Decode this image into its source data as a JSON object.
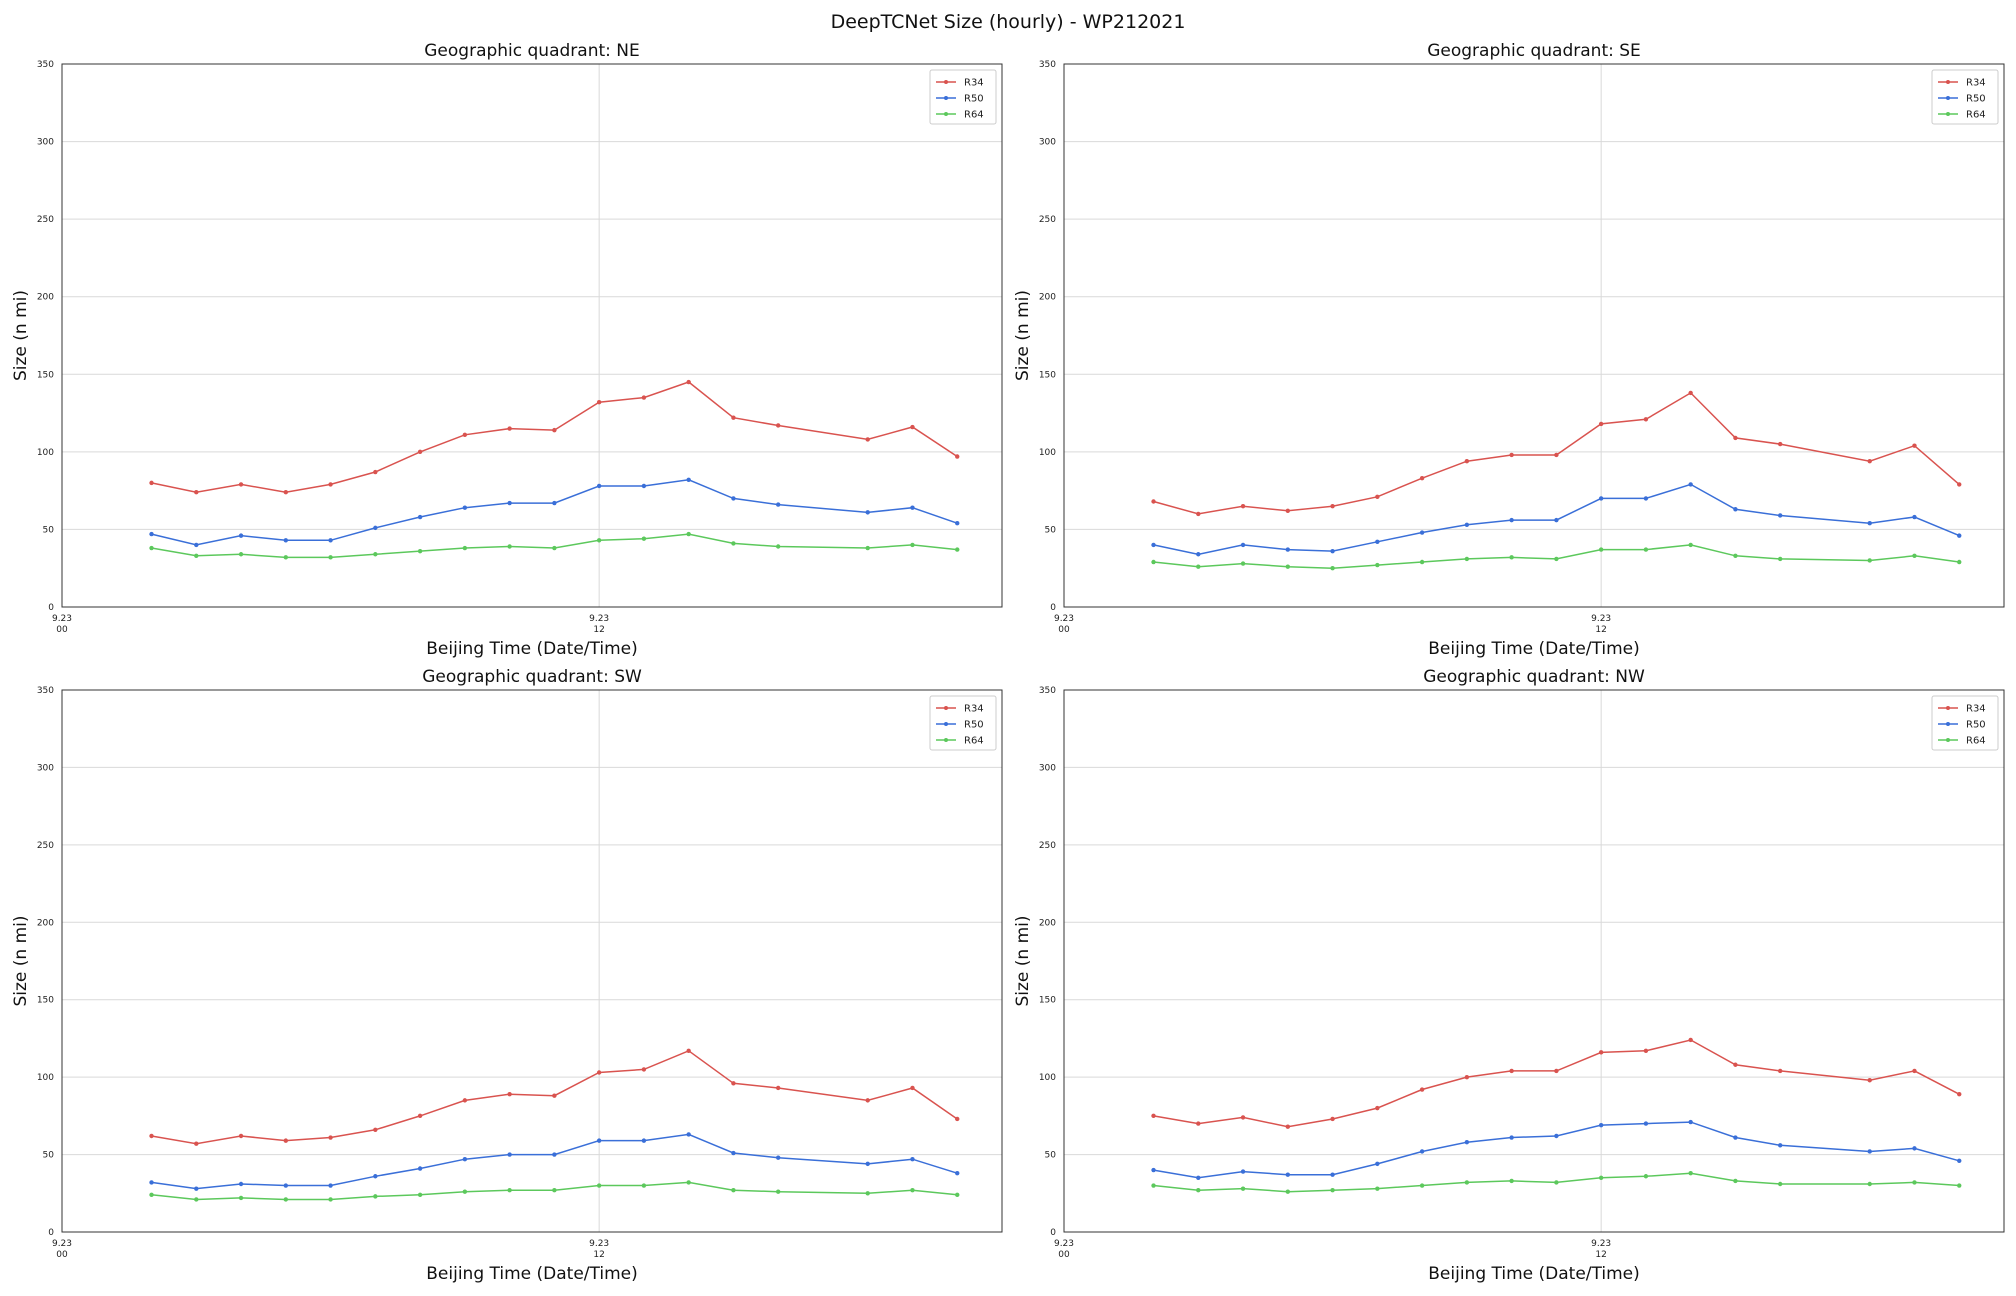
{
  "figure": {
    "suptitle": "DeepTCNet Size (hourly) - WP212021"
  },
  "colors": {
    "R34": "#d9534f",
    "R50": "#3a6fd8",
    "R64": "#5cc85c",
    "grid": "#d9d9d9",
    "axes": "#333333"
  },
  "chart_data": [
    {
      "type": "line",
      "title": "Geographic quadrant: NE",
      "xlabel": "Beijing Time (Date/Time)",
      "ylabel": "Size (n mi)",
      "xlim": [
        0,
        21
      ],
      "ylim": [
        0,
        350
      ],
      "yticks": [
        0,
        50,
        100,
        150,
        200,
        250,
        300,
        350
      ],
      "xticks": [
        {
          "x": 0,
          "line1": "9.23",
          "line2": "00"
        },
        {
          "x": 12,
          "line1": "9.23",
          "line2": "12"
        }
      ],
      "legend_position": "upper-right",
      "x": [
        2,
        3,
        4,
        5,
        6,
        7,
        8,
        9,
        10,
        11,
        12,
        13,
        14,
        15,
        16,
        18,
        19,
        20
      ],
      "series": [
        {
          "name": "R34",
          "values": [
            80,
            74,
            79,
            74,
            79,
            87,
            100,
            111,
            115,
            114,
            132,
            135,
            145,
            122,
            117,
            108,
            116,
            97
          ]
        },
        {
          "name": "R50",
          "values": [
            47,
            40,
            46,
            43,
            43,
            51,
            58,
            64,
            67,
            67,
            78,
            78,
            82,
            70,
            66,
            61,
            64,
            54
          ]
        },
        {
          "name": "R64",
          "values": [
            38,
            33,
            34,
            32,
            32,
            34,
            36,
            38,
            39,
            38,
            43,
            44,
            47,
            41,
            39,
            38,
            40,
            37
          ]
        }
      ]
    },
    {
      "type": "line",
      "title": "Geographic quadrant: SE",
      "xlabel": "Beijing Time (Date/Time)",
      "ylabel": "Size (n mi)",
      "xlim": [
        0,
        21
      ],
      "ylim": [
        0,
        350
      ],
      "yticks": [
        0,
        50,
        100,
        150,
        200,
        250,
        300,
        350
      ],
      "xticks": [
        {
          "x": 0,
          "line1": "9.23",
          "line2": "00"
        },
        {
          "x": 12,
          "line1": "9.23",
          "line2": "12"
        }
      ],
      "legend_position": "upper-right",
      "x": [
        2,
        3,
        4,
        5,
        6,
        7,
        8,
        9,
        10,
        11,
        12,
        13,
        14,
        15,
        16,
        18,
        19,
        20
      ],
      "series": [
        {
          "name": "R34",
          "values": [
            68,
            60,
            65,
            62,
            65,
            71,
            83,
            94,
            98,
            98,
            118,
            121,
            138,
            109,
            105,
            94,
            104,
            79
          ]
        },
        {
          "name": "R50",
          "values": [
            40,
            34,
            40,
            37,
            36,
            42,
            48,
            53,
            56,
            56,
            70,
            70,
            79,
            63,
            59,
            54,
            58,
            46
          ]
        },
        {
          "name": "R64",
          "values": [
            29,
            26,
            28,
            26,
            25,
            27,
            29,
            31,
            32,
            31,
            37,
            37,
            40,
            33,
            31,
            30,
            33,
            29
          ]
        }
      ]
    },
    {
      "type": "line",
      "title": "Geographic quadrant: SW",
      "xlabel": "Beijing Time (Date/Time)",
      "ylabel": "Size (n mi)",
      "xlim": [
        0,
        21
      ],
      "ylim": [
        0,
        350
      ],
      "yticks": [
        0,
        50,
        100,
        150,
        200,
        250,
        300,
        350
      ],
      "xticks": [
        {
          "x": 0,
          "line1": "9.23",
          "line2": "00"
        },
        {
          "x": 12,
          "line1": "9.23",
          "line2": "12"
        }
      ],
      "legend_position": "upper-right",
      "x": [
        2,
        3,
        4,
        5,
        6,
        7,
        8,
        9,
        10,
        11,
        12,
        13,
        14,
        15,
        16,
        18,
        19,
        20
      ],
      "series": [
        {
          "name": "R34",
          "values": [
            62,
            57,
            62,
            59,
            61,
            66,
            75,
            85,
            89,
            88,
            103,
            105,
            117,
            96,
            93,
            85,
            93,
            73
          ]
        },
        {
          "name": "R50",
          "values": [
            32,
            28,
            31,
            30,
            30,
            36,
            41,
            47,
            50,
            50,
            59,
            59,
            63,
            51,
            48,
            44,
            47,
            38
          ]
        },
        {
          "name": "R64",
          "values": [
            24,
            21,
            22,
            21,
            21,
            23,
            24,
            26,
            27,
            27,
            30,
            30,
            32,
            27,
            26,
            25,
            27,
            24
          ]
        }
      ]
    },
    {
      "type": "line",
      "title": "Geographic quadrant: NW",
      "xlabel": "Beijing Time (Date/Time)",
      "ylabel": "Size (n mi)",
      "xlim": [
        0,
        21
      ],
      "ylim": [
        0,
        350
      ],
      "yticks": [
        0,
        50,
        100,
        150,
        200,
        250,
        300,
        350
      ],
      "xticks": [
        {
          "x": 0,
          "line1": "9.23",
          "line2": "00"
        },
        {
          "x": 12,
          "line1": "9.23",
          "line2": "12"
        }
      ],
      "legend_position": "upper-right",
      "x": [
        2,
        3,
        4,
        5,
        6,
        7,
        8,
        9,
        10,
        11,
        12,
        13,
        14,
        15,
        16,
        18,
        19,
        20
      ],
      "series": [
        {
          "name": "R34",
          "values": [
            75,
            70,
            74,
            68,
            73,
            80,
            92,
            100,
            104,
            104,
            116,
            117,
            124,
            108,
            104,
            98,
            104,
            89
          ]
        },
        {
          "name": "R50",
          "values": [
            40,
            35,
            39,
            37,
            37,
            44,
            52,
            58,
            61,
            62,
            69,
            70,
            71,
            61,
            56,
            52,
            54,
            46
          ]
        },
        {
          "name": "R64",
          "values": [
            30,
            27,
            28,
            26,
            27,
            28,
            30,
            32,
            33,
            32,
            35,
            36,
            38,
            33,
            31,
            31,
            32,
            30
          ]
        }
      ]
    }
  ]
}
